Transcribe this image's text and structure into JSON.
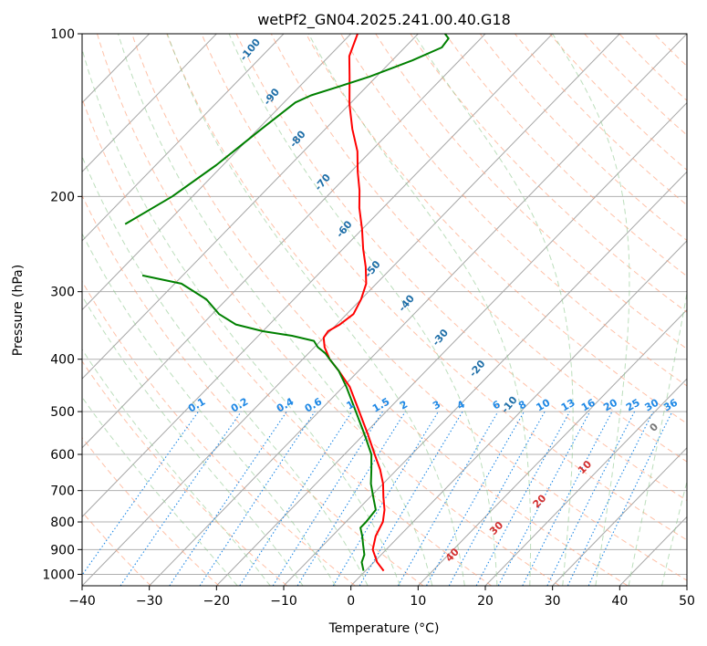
{
  "chart_data": {
    "type": "line",
    "title": "wetPf2_GN04.2025.241.00.40.G18",
    "xlabel": "Temperature (°C)",
    "ylabel": "Pressure (hPa)",
    "xlim": [
      -40,
      50
    ],
    "ylim": [
      1050,
      100
    ],
    "y_scale": "log",
    "skew": true,
    "x_ticks": [
      -40,
      -30,
      -20,
      -10,
      0,
      10,
      20,
      30,
      40,
      50
    ],
    "y_ticks": [
      100,
      200,
      300,
      400,
      500,
      600,
      700,
      800,
      900,
      1000
    ],
    "grid": true,
    "series": [
      {
        "color": "#ff0000",
        "points": [
          {
            "p": 985,
            "t": 2.7
          },
          {
            "p": 950,
            "t": 0.5
          },
          {
            "p": 900,
            "t": -2.0
          },
          {
            "p": 850,
            "t": -3.5
          },
          {
            "p": 800,
            "t": -4.5
          },
          {
            "p": 760,
            "t": -6.0
          },
          {
            "p": 720,
            "t": -8.0
          },
          {
            "p": 680,
            "t": -10.0
          },
          {
            "p": 640,
            "t": -12.5
          },
          {
            "p": 600,
            "t": -15.5
          },
          {
            "p": 550,
            "t": -19.5
          },
          {
            "p": 500,
            "t": -24.0
          },
          {
            "p": 450,
            "t": -29.0
          },
          {
            "p": 420,
            "t": -33.0
          },
          {
            "p": 400,
            "t": -36.0
          },
          {
            "p": 380,
            "t": -38.5
          },
          {
            "p": 365,
            "t": -40.0
          },
          {
            "p": 355,
            "t": -40.3
          },
          {
            "p": 345,
            "t": -39.5
          },
          {
            "p": 330,
            "t": -39.0
          },
          {
            "p": 310,
            "t": -40.0
          },
          {
            "p": 290,
            "t": -41.5
          },
          {
            "p": 270,
            "t": -44.0
          },
          {
            "p": 250,
            "t": -47.0
          },
          {
            "p": 230,
            "t": -50.0
          },
          {
            "p": 210,
            "t": -53.5
          },
          {
            "p": 195,
            "t": -56.0
          },
          {
            "p": 180,
            "t": -59.0
          },
          {
            "p": 165,
            "t": -62.0
          },
          {
            "p": 150,
            "t": -66.0
          },
          {
            "p": 135,
            "t": -70.0
          },
          {
            "p": 120,
            "t": -74.0
          },
          {
            "p": 110,
            "t": -77.0
          },
          {
            "p": 100,
            "t": -79.0
          }
        ]
      },
      {
        "color": "#008000",
        "points": [
          {
            "p": 985,
            "t": -0.3
          },
          {
            "p": 950,
            "t": -1.8
          },
          {
            "p": 920,
            "t": -2.5
          },
          {
            "p": 880,
            "t": -4.2
          },
          {
            "p": 850,
            "t": -5.5
          },
          {
            "p": 820,
            "t": -7.0
          },
          {
            "p": 800,
            "t": -7.0
          },
          {
            "p": 760,
            "t": -7.3
          },
          {
            "p": 720,
            "t": -9.5
          },
          {
            "p": 680,
            "t": -11.8
          },
          {
            "p": 640,
            "t": -13.8
          },
          {
            "p": 600,
            "t": -16.0
          },
          {
            "p": 550,
            "t": -20.0
          },
          {
            "p": 500,
            "t": -24.5
          },
          {
            "p": 450,
            "t": -29.5
          },
          {
            "p": 420,
            "t": -33.0
          },
          {
            "p": 400,
            "t": -36.0
          },
          {
            "p": 390,
            "t": -37.5
          },
          {
            "p": 380,
            "t": -39.5
          },
          {
            "p": 370,
            "t": -41.0
          },
          {
            "p": 362,
            "t": -45.0
          },
          {
            "p": 355,
            "t": -50.0
          },
          {
            "p": 345,
            "t": -55.0
          },
          {
            "p": 330,
            "t": -59.0
          },
          {
            "p": 310,
            "t": -63.0
          },
          {
            "p": 290,
            "t": -69.0
          },
          {
            "p": 280,
            "t": -76.0
          }
        ]
      },
      {
        "color": "#008000",
        "points": [
          {
            "p": 225,
            "t": -86.0
          },
          {
            "p": 200,
            "t": -83.0
          },
          {
            "p": 175,
            "t": -81.0
          },
          {
            "p": 150,
            "t": -79.5
          },
          {
            "p": 134,
            "t": -78.3
          },
          {
            "p": 130,
            "t": -77.0
          },
          {
            "p": 125,
            "t": -74.0
          },
          {
            "p": 120,
            "t": -71.0
          },
          {
            "p": 112,
            "t": -67.0
          },
          {
            "p": 106,
            "t": -64.5
          },
          {
            "p": 102,
            "t": -64.8
          },
          {
            "p": 100,
            "t": -66.0
          }
        ]
      }
    ],
    "mixing_ratio_labels": [
      "0.1",
      "0.2",
      "0.4",
      "0.6",
      "1",
      "1.5",
      "2",
      "3",
      "4",
      "6",
      "8",
      "10",
      "13",
      "16",
      "20",
      "25",
      "30",
      "36"
    ],
    "dry_adiabat_labels": [
      "-100",
      "-90",
      "-80",
      "-70",
      "-60",
      "-50",
      "-40",
      "-30",
      "-20",
      "-10"
    ],
    "moist_adiabat_labels": [
      "0",
      "10",
      "20",
      "30",
      "40"
    ]
  }
}
